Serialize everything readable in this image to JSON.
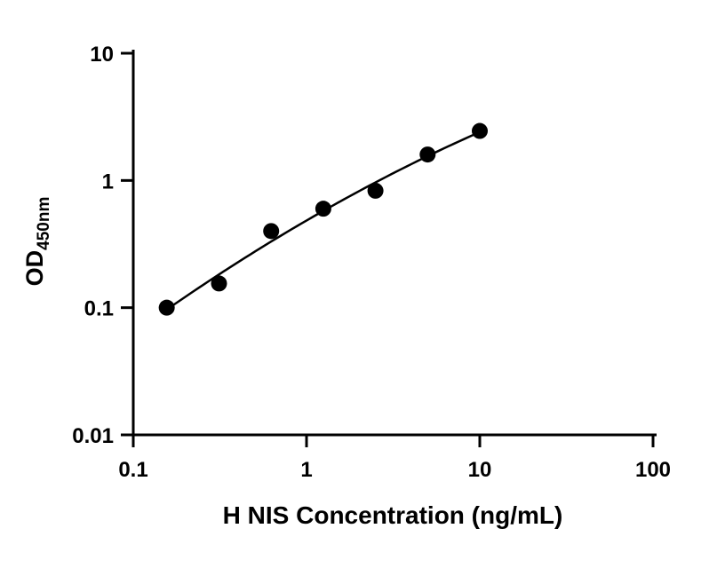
{
  "chart_data": {
    "type": "scatter",
    "title": "",
    "xlabel": "H NIS Concentration (ng/mL)",
    "ylabel": "OD",
    "ylabel_subscript": "450nm",
    "x_scale": "log10",
    "y_scale": "log10",
    "xlim": [
      0.1,
      100
    ],
    "ylim": [
      0.01,
      10
    ],
    "x_ticks": [
      0.1,
      1,
      10,
      100
    ],
    "x_tick_labels": [
      "0.1",
      "1",
      "10",
      "100"
    ],
    "y_ticks": [
      0.01,
      0.1,
      1,
      10
    ],
    "y_tick_labels": [
      "0.01",
      "0.1",
      "1",
      "10"
    ],
    "grid": false,
    "legend": "none",
    "fit_line": true,
    "series": [
      {
        "marker": "circle",
        "color": "#000000",
        "x": [
          0.156,
          0.3125,
          0.625,
          1.25,
          2.5,
          5,
          10
        ],
        "y": [
          0.1,
          0.155,
          0.4,
          0.6,
          0.83,
          1.6,
          2.45
        ]
      }
    ]
  },
  "colors": {
    "axis": "#000000",
    "marker": "#000000",
    "fit_line": "#000000",
    "background": "#ffffff"
  }
}
